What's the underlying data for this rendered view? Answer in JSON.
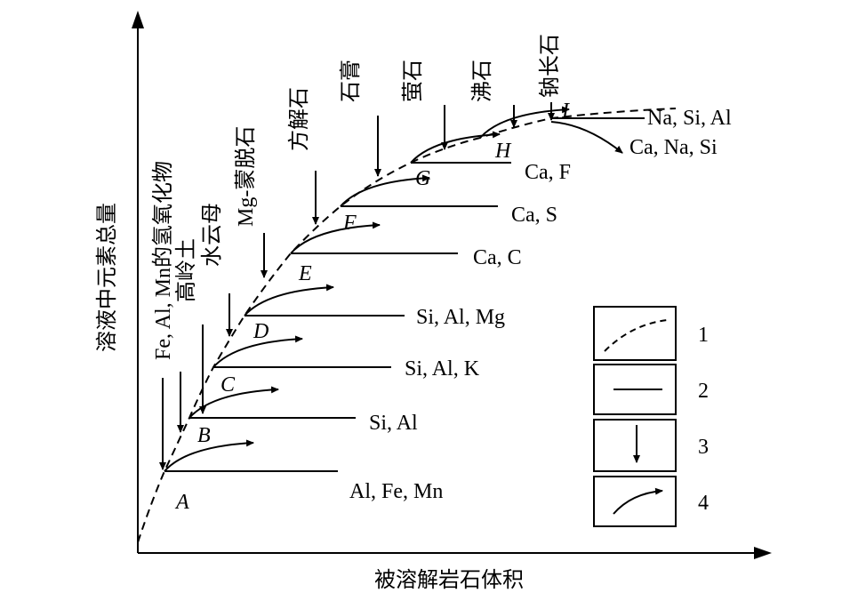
{
  "axes": {
    "y_label": "溶液中元素总量",
    "x_label": "被溶解岩石体积"
  },
  "points": [
    {
      "label": "A",
      "elements": "Al, Fe, Mn"
    },
    {
      "label": "B",
      "elements": "Si, Al"
    },
    {
      "label": "C",
      "elements": "Si, Al, K"
    },
    {
      "label": "D",
      "elements": "Si, Al, Mg"
    },
    {
      "label": "E",
      "elements": "Ca, C"
    },
    {
      "label": "F",
      "elements": "Ca, S"
    },
    {
      "label": "G",
      "elements": "Ca, F"
    },
    {
      "label": "H",
      "elements": "Ca, Na, Si"
    },
    {
      "label": "I",
      "elements": "Na, Si, Al"
    }
  ],
  "minerals": [
    "Fe, Al, Mn的氢氧化物",
    "高岭土",
    "水云母",
    "Mg-蒙脱石",
    "方解石",
    "石膏",
    "萤石",
    "沸石",
    "钠长石"
  ],
  "legend": [
    "1",
    "2",
    "3",
    "4"
  ]
}
